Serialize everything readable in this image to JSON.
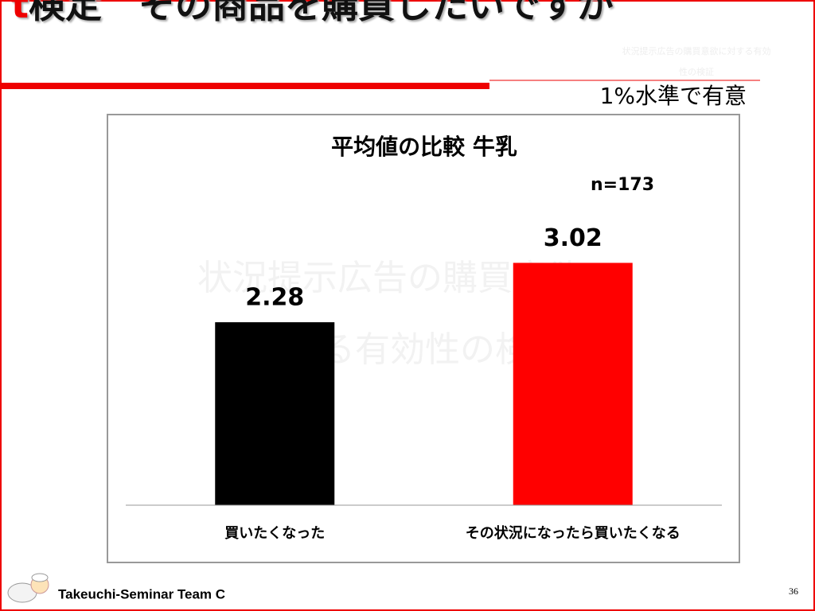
{
  "header": {
    "title_marker": "t",
    "title": "検定　その商品を購買したいですか",
    "subtitle_watermark": "状況提示広告の購買意欲に対する有効性の検証"
  },
  "note": "1%水準で有意",
  "chart_data": {
    "type": "bar",
    "title": "平均値の比較  牛乳",
    "annotation": "n=173",
    "watermark": [
      "状況提示広告の購買意欲に",
      "対する有効性の検証"
    ],
    "categories": [
      "買いたくなった",
      "その状況になったら買いたくなる"
    ],
    "values": [
      2.28,
      3.02
    ],
    "colors": [
      "#000000",
      "#ff0000"
    ],
    "ylim": [
      0,
      3.5
    ]
  },
  "footer": {
    "team": "Takeuchi-Seminar Team C",
    "page": "36"
  }
}
